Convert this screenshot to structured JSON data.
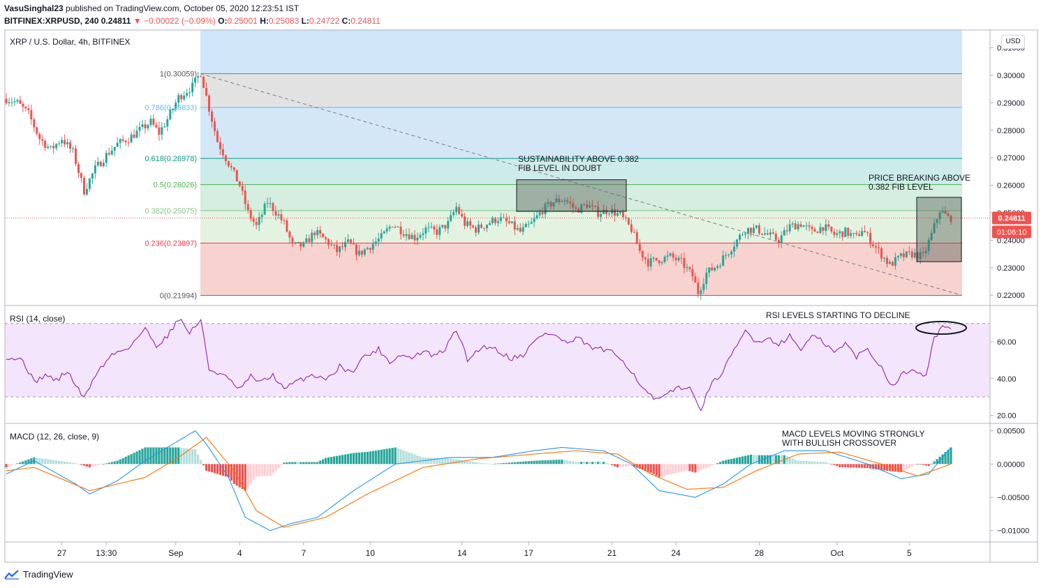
{
  "header": {
    "author": "VasuSinghal23",
    "published": "published on TradingView.com, October 05, 2020 12:23:51 IST",
    "symbol": "BITFINEX:XRPUSD, 240",
    "last": "0.24811",
    "change": "−0.00022 (−0.09%)",
    "o_label": "O:",
    "o": "0.25001",
    "h_label": "H:",
    "h": "0.25083",
    "l_label": "L:",
    "l": "0.24722",
    "c_label": "C:",
    "c": "0.24811"
  },
  "pane_title": "XRP / U.S. Dollar, 4h, BITFINEX",
  "currency_button": "USD",
  "brand": "TradingView",
  "colors": {
    "up": "#26a69a",
    "down": "#ef5350",
    "fib_top": "#cfe5f8",
    "fib_gray": "#e4e4e4",
    "rsi_line": "#8e24aa",
    "macd_line": "#2196f3",
    "signal_line": "#ff6d00"
  },
  "chart_data": [
    {
      "type": "candlestick",
      "x_ticks": [
        "27",
        "13:30",
        "Sep",
        "4",
        "7",
        "10",
        "14",
        "17",
        "21",
        "24",
        "28",
        "Oct",
        "5"
      ],
      "y_ticks": [
        "0.22000",
        "0.23000",
        "0.24000",
        "0.25000",
        "0.26000",
        "0.27000",
        "0.28000",
        "0.29000",
        "0.30000",
        "0.31000"
      ],
      "ylim": [
        0.2165,
        0.3165
      ],
      "last_price_label": "0.24811",
      "countdown_label": "01:06:10",
      "fib_levels": [
        {
          "label": "1(0.30059)",
          "value": 0.30059
        },
        {
          "label": "0.786(0.28833)",
          "value": 0.28833
        },
        {
          "label": "0.618(0.26978)",
          "value": 0.26978
        },
        {
          "label": "0.5(0.26026)",
          "value": 0.26026
        },
        {
          "label": "0.382(0.25075)",
          "value": 0.25075
        },
        {
          "label": "0.236(0.23897)",
          "value": 0.23897
        },
        {
          "label": "0(0.21994)",
          "value": 0.21994
        }
      ],
      "path_points": [
        [
          0,
          0.2915
        ],
        [
          4,
          0.29
        ],
        [
          8,
          0.286
        ],
        [
          12,
          0.277
        ],
        [
          16,
          0.273
        ],
        [
          20,
          0.277
        ],
        [
          24,
          0.272
        ],
        [
          28,
          0.258
        ],
        [
          32,
          0.266
        ],
        [
          36,
          0.271
        ],
        [
          40,
          0.275
        ],
        [
          44,
          0.277
        ],
        [
          48,
          0.28
        ],
        [
          52,
          0.283
        ],
        [
          55,
          0.279
        ],
        [
          58,
          0.284
        ],
        [
          62,
          0.292
        ],
        [
          67,
          0.296
        ],
        [
          70,
          0.301
        ],
        [
          73,
          0.288
        ],
        [
          76,
          0.276
        ],
        [
          80,
          0.268
        ],
        [
          84,
          0.26
        ],
        [
          87,
          0.25
        ],
        [
          90,
          0.245
        ],
        [
          94,
          0.254
        ],
        [
          98,
          0.249
        ],
        [
          100,
          0.246
        ],
        [
          103,
          0.238
        ],
        [
          107,
          0.238
        ],
        [
          111,
          0.243
        ],
        [
          115,
          0.24
        ],
        [
          119,
          0.236
        ],
        [
          123,
          0.239
        ],
        [
          127,
          0.235
        ],
        [
          131,
          0.238
        ],
        [
          135,
          0.241
        ],
        [
          139,
          0.246
        ],
        [
          143,
          0.243
        ],
        [
          147,
          0.241
        ],
        [
          151,
          0.244
        ],
        [
          155,
          0.243
        ],
        [
          159,
          0.246
        ],
        [
          162,
          0.252
        ],
        [
          165,
          0.246
        ],
        [
          169,
          0.244
        ],
        [
          173,
          0.246
        ],
        [
          177,
          0.248
        ],
        [
          181,
          0.246
        ],
        [
          185,
          0.243
        ],
        [
          189,
          0.246
        ],
        [
          193,
          0.251
        ],
        [
          197,
          0.254
        ],
        [
          201,
          0.255
        ],
        [
          205,
          0.251
        ],
        [
          209,
          0.253
        ],
        [
          213,
          0.25
        ],
        [
          217,
          0.251
        ],
        [
          221,
          0.249
        ],
        [
          225,
          0.244
        ],
        [
          228,
          0.236
        ],
        [
          231,
          0.232
        ],
        [
          235,
          0.233
        ],
        [
          239,
          0.234
        ],
        [
          243,
          0.232
        ],
        [
          247,
          0.227
        ],
        [
          249,
          0.221
        ],
        [
          252,
          0.228
        ],
        [
          256,
          0.231
        ],
        [
          260,
          0.236
        ],
        [
          263,
          0.24
        ],
        [
          266,
          0.244
        ],
        [
          270,
          0.244
        ],
        [
          274,
          0.242
        ],
        [
          278,
          0.24
        ],
        [
          282,
          0.245
        ],
        [
          286,
          0.246
        ],
        [
          290,
          0.243
        ],
        [
          294,
          0.245
        ],
        [
          298,
          0.242
        ],
        [
          302,
          0.243
        ],
        [
          306,
          0.241
        ],
        [
          308,
          0.244
        ],
        [
          311,
          0.24
        ],
        [
          314,
          0.236
        ],
        [
          318,
          0.231
        ],
        [
          322,
          0.234
        ],
        [
          326,
          0.235
        ],
        [
          330,
          0.234
        ],
        [
          333,
          0.242
        ],
        [
          336,
          0.251
        ],
        [
          339,
          0.2481
        ]
      ],
      "annotations": [
        {
          "text": [
            "SUSTAINABILITY ABOVE 0.382",
            "FIB LEVEL IN DOUBT"
          ]
        },
        {
          "text": [
            "PRICE BREAKING ABOVE",
            "0.382 FIB LEVEL"
          ]
        }
      ]
    },
    {
      "type": "line",
      "title": "RSI (14, close)",
      "y_ticks": [
        "20.00",
        "40.00",
        "60.00"
      ],
      "ylim": [
        16,
        79
      ],
      "band": [
        30,
        70
      ],
      "path_points": [
        [
          0,
          52
        ],
        [
          6,
          50
        ],
        [
          10,
          38
        ],
        [
          14,
          42
        ],
        [
          18,
          39
        ],
        [
          22,
          44
        ],
        [
          28,
          29
        ],
        [
          32,
          42
        ],
        [
          38,
          53
        ],
        [
          44,
          57
        ],
        [
          50,
          67
        ],
        [
          54,
          58
        ],
        [
          58,
          63
        ],
        [
          62,
          73
        ],
        [
          66,
          65
        ],
        [
          70,
          72
        ],
        [
          73,
          45
        ],
        [
          78,
          42
        ],
        [
          84,
          34
        ],
        [
          88,
          41
        ],
        [
          92,
          38
        ],
        [
          96,
          42
        ],
        [
          100,
          34
        ],
        [
          104,
          38
        ],
        [
          110,
          42
        ],
        [
          116,
          40
        ],
        [
          120,
          47
        ],
        [
          124,
          43
        ],
        [
          128,
          51
        ],
        [
          134,
          56
        ],
        [
          138,
          49
        ],
        [
          142,
          53
        ],
        [
          146,
          51
        ],
        [
          150,
          55
        ],
        [
          154,
          52
        ],
        [
          158,
          56
        ],
        [
          162,
          67
        ],
        [
          166,
          50
        ],
        [
          170,
          56
        ],
        [
          174,
          58
        ],
        [
          178,
          54
        ],
        [
          182,
          51
        ],
        [
          186,
          53
        ],
        [
          190,
          60
        ],
        [
          194,
          65
        ],
        [
          198,
          63
        ],
        [
          202,
          59
        ],
        [
          206,
          62
        ],
        [
          210,
          57
        ],
        [
          214,
          56
        ],
        [
          218,
          54
        ],
        [
          222,
          50
        ],
        [
          226,
          42
        ],
        [
          230,
          33
        ],
        [
          234,
          28
        ],
        [
          238,
          31
        ],
        [
          242,
          36
        ],
        [
          246,
          34
        ],
        [
          250,
          24
        ],
        [
          254,
          37
        ],
        [
          258,
          44
        ],
        [
          262,
          55
        ],
        [
          266,
          66
        ],
        [
          270,
          60
        ],
        [
          274,
          62
        ],
        [
          278,
          59
        ],
        [
          282,
          63
        ],
        [
          286,
          56
        ],
        [
          290,
          63
        ],
        [
          294,
          60
        ],
        [
          298,
          54
        ],
        [
          302,
          59
        ],
        [
          306,
          52
        ],
        [
          310,
          56
        ],
        [
          312,
          52
        ],
        [
          315,
          46
        ],
        [
          319,
          36
        ],
        [
          323,
          43
        ],
        [
          327,
          45
        ],
        [
          331,
          42
        ],
        [
          334,
          62
        ],
        [
          337,
          69
        ],
        [
          340,
          66
        ]
      ],
      "annotation": "RSI LEVELS STARTING TO DECLINE"
    },
    {
      "type": "bar",
      "title": "MACD (12, 26, close, 9)",
      "y_ticks": [
        "−0.01000",
        "−0.00500",
        "0.00000",
        "0.00500"
      ],
      "ylim": [
        -0.0116,
        0.0059
      ],
      "macd": [
        [
          0,
          -0.0015
        ],
        [
          10,
          0.0005
        ],
        [
          25,
          -0.003
        ],
        [
          30,
          -0.0045
        ],
        [
          40,
          -0.0025
        ],
        [
          50,
          0.0005
        ],
        [
          62,
          0.0035
        ],
        [
          68,
          0.005
        ],
        [
          72,
          0.003
        ],
        [
          80,
          -0.002
        ],
        [
          86,
          -0.008
        ],
        [
          95,
          -0.01
        ],
        [
          102,
          -0.009
        ],
        [
          112,
          -0.008
        ],
        [
          125,
          -0.004
        ],
        [
          140,
          0.0
        ],
        [
          160,
          0.001
        ],
        [
          175,
          0.001
        ],
        [
          190,
          0.002
        ],
        [
          200,
          0.0025
        ],
        [
          215,
          0.002
        ],
        [
          225,
          0.0
        ],
        [
          235,
          -0.004
        ],
        [
          248,
          -0.005
        ],
        [
          258,
          -0.003
        ],
        [
          268,
          0.0
        ],
        [
          280,
          0.002
        ],
        [
          295,
          0.002
        ],
        [
          310,
          0.0
        ],
        [
          322,
          -0.0022
        ],
        [
          332,
          -0.0015
        ],
        [
          340,
          0.0025
        ]
      ],
      "signal": [
        [
          0,
          -0.001
        ],
        [
          10,
          -0.0005
        ],
        [
          30,
          -0.004
        ],
        [
          50,
          -0.002
        ],
        [
          62,
          0.001
        ],
        [
          72,
          0.004
        ],
        [
          82,
          -0.001
        ],
        [
          90,
          -0.007
        ],
        [
          100,
          -0.0095
        ],
        [
          115,
          -0.008
        ],
        [
          130,
          -0.0045
        ],
        [
          150,
          -0.0005
        ],
        [
          170,
          0.0008
        ],
        [
          190,
          0.0015
        ],
        [
          205,
          0.002
        ],
        [
          220,
          0.0015
        ],
        [
          232,
          -0.0015
        ],
        [
          245,
          -0.0038
        ],
        [
          258,
          -0.0035
        ],
        [
          270,
          -0.001
        ],
        [
          285,
          0.0015
        ],
        [
          300,
          0.0018
        ],
        [
          315,
          0.0
        ],
        [
          328,
          -0.0018
        ],
        [
          340,
          0.0
        ]
      ],
      "annotation": [
        "MACD LEVELS MOVING STRONGLY",
        "WITH BULLISH CROSSOVER"
      ]
    }
  ]
}
